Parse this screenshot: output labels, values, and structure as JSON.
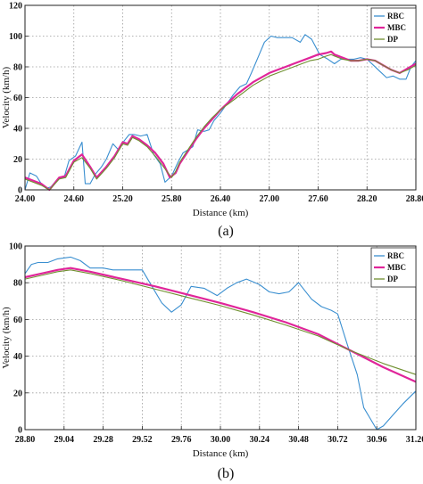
{
  "chart_data": [
    {
      "type": "line",
      "caption": "(a)",
      "xlabel": "Distance (km)",
      "ylabel": "Velocity (km/h)",
      "xlim": [
        24.0,
        28.8
      ],
      "ylim": [
        0,
        120
      ],
      "xticks": [
        "24.00",
        "24.60",
        "25.20",
        "25.80",
        "26.40",
        "27.00",
        "27.60",
        "28.20",
        "28.80"
      ],
      "yticks": [
        "0",
        "20",
        "40",
        "60",
        "80",
        "100",
        "120"
      ],
      "grid": true,
      "legend_position": "top-right",
      "series": [
        {
          "name": "RBC",
          "color": "#3a8fd0",
          "x": [
            24.0,
            24.06,
            24.14,
            24.2,
            24.26,
            24.32,
            24.4,
            24.48,
            24.54,
            24.62,
            24.7,
            24.74,
            24.8,
            24.86,
            24.94,
            25.0,
            25.08,
            25.15,
            25.22,
            25.28,
            25.34,
            25.42,
            25.5,
            25.58,
            25.66,
            25.72,
            25.8,
            25.88,
            25.94,
            26.0,
            26.06,
            26.12,
            26.2,
            26.26,
            26.32,
            26.4,
            26.48,
            26.56,
            26.64,
            26.72,
            26.78,
            26.86,
            26.94,
            27.02,
            27.1,
            27.18,
            27.28,
            27.38,
            27.44,
            27.52,
            27.62,
            27.72,
            27.8,
            27.88,
            27.96,
            28.04,
            28.12,
            28.2,
            28.28,
            28.36,
            28.44,
            28.52,
            28.6,
            28.68,
            28.74,
            28.8
          ],
          "y": [
            0,
            11,
            9,
            4,
            1,
            2,
            7,
            8,
            19,
            22,
            31,
            4,
            4,
            10,
            15,
            20,
            30,
            26,
            32,
            36,
            36,
            35,
            36,
            23,
            17,
            5,
            9,
            18,
            24,
            26,
            28,
            39,
            38,
            39,
            45,
            50,
            56,
            62,
            67,
            69,
            76,
            86,
            96,
            100,
            99,
            99,
            99,
            96,
            101,
            98,
            88,
            85,
            82,
            85,
            85,
            85,
            86,
            85,
            81,
            77,
            73,
            74,
            72,
            72,
            80,
            84
          ]
        },
        {
          "name": "MBC",
          "color": "#e0259a",
          "x": [
            24.0,
            24.2,
            24.3,
            24.42,
            24.5,
            24.6,
            24.7,
            24.8,
            24.88,
            25.0,
            25.1,
            25.2,
            25.26,
            25.32,
            25.4,
            25.5,
            25.6,
            25.7,
            25.78,
            25.85,
            25.9,
            26.0,
            26.1,
            26.2,
            26.3,
            26.4,
            26.5,
            26.6,
            26.7,
            26.8,
            26.9,
            27.0,
            27.1,
            27.2,
            27.3,
            27.4,
            27.5,
            27.6,
            27.7,
            27.76,
            27.8,
            27.9,
            28.0,
            28.1,
            28.2,
            28.3,
            28.4,
            28.5,
            28.6,
            28.7,
            28.8
          ],
          "y": [
            8,
            4,
            0,
            8,
            9,
            19,
            23,
            15,
            8,
            15,
            22,
            31,
            30,
            35,
            33,
            29,
            24,
            17,
            8,
            11,
            17,
            25,
            33,
            40,
            46,
            52,
            57,
            62,
            66,
            70,
            73,
            76,
            78,
            80,
            82,
            84,
            86,
            88,
            89,
            90,
            88,
            86,
            84,
            84,
            85,
            84,
            81,
            78,
            76,
            79,
            82
          ]
        },
        {
          "name": "DP",
          "color": "#6f8f2f",
          "x": [
            24.0,
            24.2,
            24.3,
            24.42,
            24.5,
            24.6,
            24.7,
            24.8,
            24.88,
            25.0,
            25.1,
            25.2,
            25.26,
            25.32,
            25.4,
            25.5,
            25.6,
            25.7,
            25.8,
            25.85,
            25.9,
            26.0,
            26.1,
            26.2,
            26.3,
            26.4,
            26.5,
            26.6,
            26.7,
            26.8,
            26.9,
            27.0,
            27.1,
            27.2,
            27.3,
            27.4,
            27.5,
            27.6,
            27.7,
            27.76,
            27.8,
            27.9,
            28.0,
            28.1,
            28.2,
            28.3,
            28.4,
            28.5,
            28.6,
            28.7,
            28.8
          ],
          "y": [
            7,
            3,
            0,
            7,
            8,
            18,
            21,
            14,
            7,
            14,
            21,
            30,
            29,
            34,
            32,
            28,
            22,
            15,
            8,
            12,
            18,
            26,
            34,
            41,
            47,
            52,
            56,
            60,
            64,
            68,
            71,
            74,
            76,
            78,
            80,
            82,
            84,
            85,
            87,
            88,
            87,
            85,
            84,
            84,
            85,
            84,
            81,
            78,
            76,
            78,
            81
          ]
        }
      ]
    },
    {
      "type": "line",
      "caption": "(b)",
      "xlabel": "Distance (km)",
      "ylabel": "Velocity (km/h)",
      "xlim": [
        28.8,
        31.2
      ],
      "ylim": [
        0,
        100
      ],
      "xticks": [
        "28.80",
        "29.04",
        "29.28",
        "29.52",
        "29.76",
        "30.00",
        "30.24",
        "30.48",
        "30.72",
        "30.96",
        "31.20"
      ],
      "yticks": [
        "0",
        "20",
        "40",
        "60",
        "80",
        "100"
      ],
      "grid": true,
      "legend_position": "top-right",
      "series": [
        {
          "name": "RBC",
          "color": "#3a8fd0",
          "x": [
            28.8,
            28.84,
            28.88,
            28.94,
            29.0,
            29.08,
            29.14,
            29.2,
            29.28,
            29.34,
            29.4,
            29.46,
            29.52,
            29.58,
            29.64,
            29.7,
            29.76,
            29.82,
            29.9,
            29.98,
            30.04,
            30.1,
            30.16,
            30.24,
            30.3,
            30.36,
            30.42,
            30.48,
            30.56,
            30.62,
            30.68,
            30.72,
            30.78,
            30.84,
            30.88,
            30.92,
            30.96,
            31.0,
            31.06,
            31.12,
            31.2
          ],
          "y": [
            85,
            90,
            91,
            91,
            93,
            94,
            92,
            88,
            88,
            87,
            87,
            87,
            87,
            78,
            69,
            64,
            68,
            78,
            77,
            73,
            77,
            80,
            82,
            79,
            75,
            74,
            75,
            80,
            71,
            67,
            65,
            63,
            46,
            30,
            12,
            6,
            0,
            2,
            8,
            14,
            21
          ]
        },
        {
          "name": "MBC",
          "color": "#e0259a",
          "x": [
            28.8,
            28.9,
            29.0,
            29.08,
            29.2,
            29.4,
            29.6,
            29.8,
            30.0,
            30.2,
            30.4,
            30.6,
            30.8,
            31.0,
            31.2
          ],
          "y": [
            83,
            85,
            87,
            88,
            86,
            82,
            78,
            73.5,
            69,
            64,
            58.5,
            52,
            43,
            34,
            26
          ]
        },
        {
          "name": "DP",
          "color": "#6f8f2f",
          "x": [
            28.8,
            28.9,
            29.0,
            29.08,
            29.2,
            29.4,
            29.6,
            29.8,
            30.0,
            30.2,
            30.4,
            30.6,
            30.8,
            31.0,
            31.2
          ],
          "y": [
            82,
            84,
            86,
            87,
            85,
            81,
            76.5,
            72,
            67.5,
            62.5,
            57,
            51,
            43,
            36,
            30
          ]
        }
      ]
    }
  ]
}
